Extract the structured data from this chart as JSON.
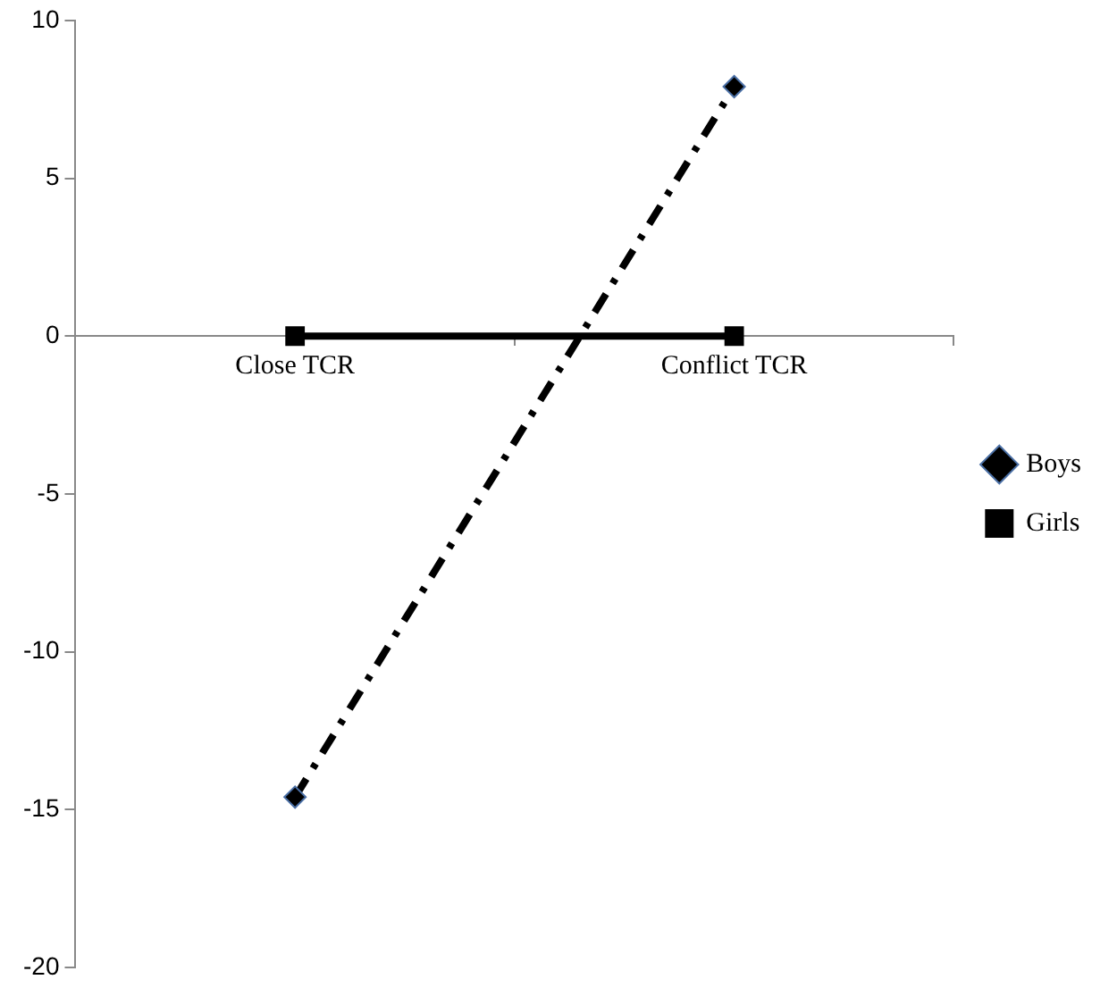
{
  "chart_data": {
    "type": "line",
    "categories": [
      "Close TCR",
      "Conflict TCR"
    ],
    "series": [
      {
        "name": "Boys",
        "color": "#000000",
        "values": [
          -14.6,
          7.9
        ],
        "marker": "diamond",
        "line_style": "dashdot"
      },
      {
        "name": "Girls",
        "color": "#000000",
        "values": [
          0,
          0
        ],
        "marker": "square",
        "line_style": "solid"
      }
    ],
    "ylim": [
      -20,
      10
    ],
    "yticks": [
      -20,
      -15,
      -10,
      -5,
      0,
      5,
      10
    ],
    "grid": false,
    "legend": "right"
  }
}
